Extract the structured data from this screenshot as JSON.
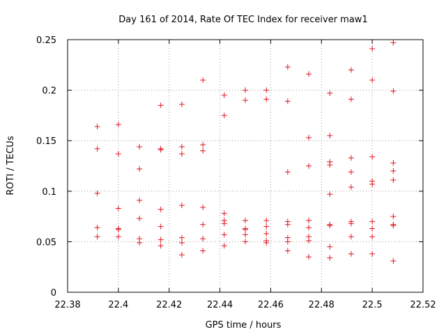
{
  "chart_data": {
    "type": "scatter",
    "title": "Day 161 of 2014, Rate Of TEC Index for receiver maw1",
    "xlabel": "GPS time / hours",
    "ylabel": "ROTI / TECUs",
    "xlim": [
      22.38,
      22.52
    ],
    "ylim": [
      0,
      0.25
    ],
    "xticks": [
      {
        "value": 22.38,
        "label": "22.38"
      },
      {
        "value": 22.4,
        "label": "22.4"
      },
      {
        "value": 22.42,
        "label": "22.42"
      },
      {
        "value": 22.44,
        "label": "22.44"
      },
      {
        "value": 22.46,
        "label": "22.46"
      },
      {
        "value": 22.48,
        "label": "22.48"
      },
      {
        "value": 22.5,
        "label": "22.5"
      },
      {
        "value": 22.52,
        "label": "22.52"
      }
    ],
    "yticks": [
      {
        "value": 0,
        "label": "0"
      },
      {
        "value": 0.05,
        "label": "0.05"
      },
      {
        "value": 0.1,
        "label": "0.1"
      },
      {
        "value": 0.15,
        "label": "0.15"
      },
      {
        "value": 0.2,
        "label": "0.2"
      },
      {
        "value": 0.25,
        "label": "0.25"
      }
    ],
    "grid": true,
    "marker": "+",
    "color": "#e0141e",
    "series": [
      {
        "name": "ROTI",
        "points": [
          [
            22.3917,
            0.164
          ],
          [
            22.3917,
            0.142
          ],
          [
            22.3917,
            0.098
          ],
          [
            22.3917,
            0.064
          ],
          [
            22.3917,
            0.055
          ],
          [
            22.4,
            0.166
          ],
          [
            22.4,
            0.137
          ],
          [
            22.4,
            0.083
          ],
          [
            22.4,
            0.063
          ],
          [
            22.4,
            0.062
          ],
          [
            22.4,
            0.055
          ],
          [
            22.4083,
            0.144
          ],
          [
            22.4083,
            0.122
          ],
          [
            22.4083,
            0.091
          ],
          [
            22.4083,
            0.073
          ],
          [
            22.4083,
            0.053
          ],
          [
            22.4083,
            0.049
          ],
          [
            22.4167,
            0.185
          ],
          [
            22.4167,
            0.142
          ],
          [
            22.4167,
            0.141
          ],
          [
            22.4167,
            0.082
          ],
          [
            22.4167,
            0.065
          ],
          [
            22.4167,
            0.052
          ],
          [
            22.4167,
            0.046
          ],
          [
            22.425,
            0.186
          ],
          [
            22.425,
            0.144
          ],
          [
            22.425,
            0.137
          ],
          [
            22.425,
            0.086
          ],
          [
            22.425,
            0.054
          ],
          [
            22.425,
            0.049
          ],
          [
            22.425,
            0.037
          ],
          [
            22.4333,
            0.21
          ],
          [
            22.4333,
            0.146
          ],
          [
            22.4333,
            0.14
          ],
          [
            22.4333,
            0.084
          ],
          [
            22.4333,
            0.067
          ],
          [
            22.4333,
            0.053
          ],
          [
            22.4333,
            0.041
          ],
          [
            22.4417,
            0.195
          ],
          [
            22.4417,
            0.175
          ],
          [
            22.4417,
            0.078
          ],
          [
            22.4417,
            0.071
          ],
          [
            22.4417,
            0.068
          ],
          [
            22.4417,
            0.057
          ],
          [
            22.4417,
            0.046
          ],
          [
            22.45,
            0.2
          ],
          [
            22.45,
            0.19
          ],
          [
            22.45,
            0.071
          ],
          [
            22.45,
            0.063
          ],
          [
            22.45,
            0.062
          ],
          [
            22.45,
            0.057
          ],
          [
            22.45,
            0.05
          ],
          [
            22.4583,
            0.2
          ],
          [
            22.4583,
            0.191
          ],
          [
            22.4583,
            0.071
          ],
          [
            22.4583,
            0.065
          ],
          [
            22.4583,
            0.058
          ],
          [
            22.4583,
            0.051
          ],
          [
            22.4583,
            0.049
          ],
          [
            22.4667,
            0.223
          ],
          [
            22.4667,
            0.189
          ],
          [
            22.4667,
            0.119
          ],
          [
            22.4667,
            0.07
          ],
          [
            22.4667,
            0.067
          ],
          [
            22.4667,
            0.054
          ],
          [
            22.4667,
            0.05
          ],
          [
            22.4667,
            0.041
          ],
          [
            22.475,
            0.216
          ],
          [
            22.475,
            0.153
          ],
          [
            22.475,
            0.125
          ],
          [
            22.475,
            0.071
          ],
          [
            22.475,
            0.064
          ],
          [
            22.475,
            0.055
          ],
          [
            22.475,
            0.051
          ],
          [
            22.475,
            0.035
          ],
          [
            22.4833,
            0.197
          ],
          [
            22.4833,
            0.155
          ],
          [
            22.4833,
            0.129
          ],
          [
            22.4833,
            0.126
          ],
          [
            22.4833,
            0.097
          ],
          [
            22.4833,
            0.067
          ],
          [
            22.4833,
            0.066
          ],
          [
            22.4833,
            0.045
          ],
          [
            22.4833,
            0.034
          ],
          [
            22.4917,
            0.22
          ],
          [
            22.4917,
            0.191
          ],
          [
            22.4917,
            0.133
          ],
          [
            22.4917,
            0.119
          ],
          [
            22.4917,
            0.104
          ],
          [
            22.4917,
            0.07
          ],
          [
            22.4917,
            0.068
          ],
          [
            22.4917,
            0.055
          ],
          [
            22.4917,
            0.038
          ],
          [
            22.5,
            0.241
          ],
          [
            22.5,
            0.21
          ],
          [
            22.5,
            0.134
          ],
          [
            22.5,
            0.11
          ],
          [
            22.5,
            0.107
          ],
          [
            22.5,
            0.07
          ],
          [
            22.5,
            0.063
          ],
          [
            22.5,
            0.055
          ],
          [
            22.5,
            0.038
          ],
          [
            22.5083,
            0.247
          ],
          [
            22.5083,
            0.199
          ],
          [
            22.5083,
            0.128
          ],
          [
            22.5083,
            0.12
          ],
          [
            22.5083,
            0.111
          ],
          [
            22.5083,
            0.075
          ],
          [
            22.5083,
            0.067
          ],
          [
            22.5083,
            0.066
          ],
          [
            22.5083,
            0.031
          ]
        ]
      }
    ]
  }
}
